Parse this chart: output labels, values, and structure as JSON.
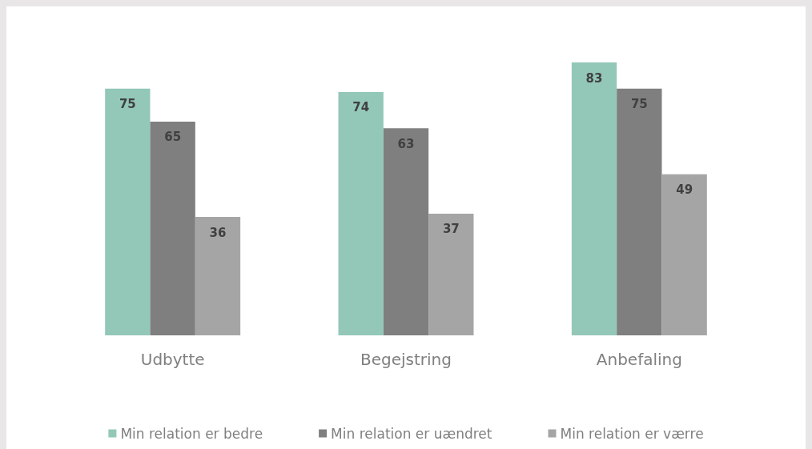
{
  "chart_data": {
    "type": "bar",
    "categories": [
      "Udbytte",
      "Begejstring",
      "Anbefaling"
    ],
    "series": [
      {
        "name": "Min relation er bedre",
        "color": "#93c8b8",
        "values": [
          75,
          74,
          83
        ]
      },
      {
        "name": "Min relation er uændret",
        "color": "#7f7f7f",
        "values": [
          65,
          63,
          75
        ]
      },
      {
        "name": "Min relation er værre",
        "color": "#a5a5a5",
        "values": [
          36,
          37,
          49
        ]
      }
    ],
    "data_labels": true,
    "legend": "bottom",
    "grid": false
  }
}
